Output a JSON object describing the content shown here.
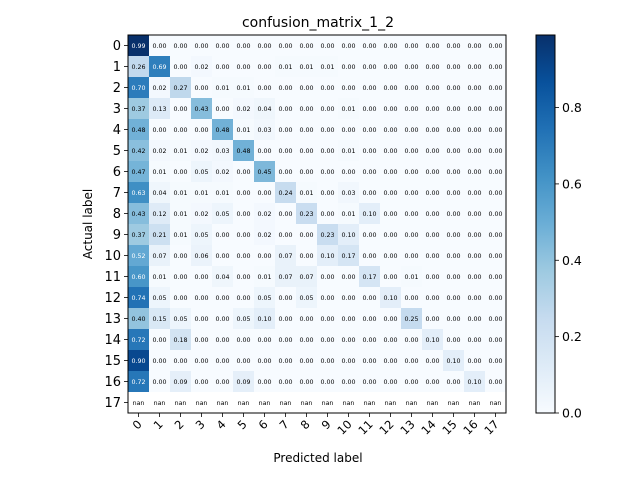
{
  "chart_data": {
    "type": "heatmap",
    "title": "confusion_matrix_1_2",
    "xlabel": "Predicted label",
    "ylabel": "Actual label",
    "labels": [
      "0",
      "1",
      "2",
      "3",
      "4",
      "5",
      "6",
      "7",
      "8",
      "9",
      "10",
      "11",
      "12",
      "13",
      "14",
      "15",
      "16",
      "17"
    ],
    "colorbar": {
      "min": 0.0,
      "max": 0.99,
      "ticks": [
        "0.0",
        "0.2",
        "0.4",
        "0.6",
        "0.8"
      ],
      "tick_values": [
        0.0,
        0.2,
        0.4,
        0.6,
        0.8
      ]
    },
    "colors": {
      "low": "#f7fbff",
      "high": "#08306b"
    },
    "matrix": [
      [
        0.99,
        0.0,
        0.0,
        0.0,
        0.0,
        0.0,
        0.0,
        0.0,
        0.0,
        0.0,
        0.0,
        0.0,
        0.0,
        0.0,
        0.0,
        0.0,
        0.0,
        0.0
      ],
      [
        0.26,
        0.69,
        0.0,
        0.02,
        0.0,
        0.0,
        0.0,
        0.01,
        0.01,
        0.01,
        0.0,
        0.0,
        0.0,
        0.0,
        0.0,
        0.0,
        0.0,
        0.0
      ],
      [
        0.7,
        0.02,
        0.27,
        0.0,
        0.01,
        0.01,
        0.0,
        0.0,
        0.0,
        0.0,
        0.0,
        0.0,
        0.0,
        0.0,
        0.0,
        0.0,
        0.0,
        0.0
      ],
      [
        0.37,
        0.13,
        0.0,
        0.43,
        0.0,
        0.02,
        0.04,
        0.0,
        0.0,
        0.0,
        0.01,
        0.0,
        0.0,
        0.0,
        0.0,
        0.0,
        0.0,
        0.0
      ],
      [
        0.48,
        0.0,
        0.0,
        0.0,
        0.48,
        0.01,
        0.03,
        0.0,
        0.0,
        0.0,
        0.0,
        0.0,
        0.0,
        0.0,
        0.0,
        0.0,
        0.0,
        0.0
      ],
      [
        0.42,
        0.02,
        0.01,
        0.02,
        0.03,
        0.48,
        0.0,
        0.0,
        0.0,
        0.0,
        0.01,
        0.0,
        0.0,
        0.0,
        0.0,
        0.0,
        0.0,
        0.0
      ],
      [
        0.47,
        0.01,
        0.0,
        0.05,
        0.02,
        0.0,
        0.45,
        0.0,
        0.0,
        0.0,
        0.0,
        0.0,
        0.0,
        0.0,
        0.0,
        0.0,
        0.0,
        0.0
      ],
      [
        0.63,
        0.04,
        0.01,
        0.01,
        0.01,
        0.0,
        0.0,
        0.24,
        0.01,
        0.0,
        0.03,
        0.0,
        0.0,
        0.0,
        0.0,
        0.0,
        0.0,
        0.0
      ],
      [
        0.43,
        0.12,
        0.01,
        0.02,
        0.05,
        0.0,
        0.02,
        0.0,
        0.23,
        0.0,
        0.01,
        0.1,
        0.0,
        0.0,
        0.0,
        0.0,
        0.0,
        0.0
      ],
      [
        0.37,
        0.21,
        0.01,
        0.05,
        0.0,
        0.0,
        0.02,
        0.0,
        0.0,
        0.23,
        0.1,
        0.0,
        0.0,
        0.0,
        0.0,
        0.0,
        0.0,
        0.0
      ],
      [
        0.52,
        0.07,
        0.0,
        0.06,
        0.0,
        0.0,
        0.0,
        0.07,
        0.0,
        0.1,
        0.17,
        0.0,
        0.0,
        0.0,
        0.0,
        0.0,
        0.0,
        0.0
      ],
      [
        0.6,
        0.01,
        0.0,
        0.0,
        0.04,
        0.0,
        0.01,
        0.07,
        0.07,
        0.0,
        0.0,
        0.17,
        0.0,
        0.01,
        0.0,
        0.0,
        0.0,
        0.0
      ],
      [
        0.74,
        0.05,
        0.0,
        0.0,
        0.0,
        0.0,
        0.05,
        0.0,
        0.05,
        0.0,
        0.0,
        0.0,
        0.1,
        0.0,
        0.0,
        0.0,
        0.0,
        0.0
      ],
      [
        0.4,
        0.15,
        0.05,
        0.0,
        0.0,
        0.05,
        0.1,
        0.0,
        0.0,
        0.0,
        0.0,
        0.0,
        0.0,
        0.25,
        0.0,
        0.0,
        0.0,
        0.0
      ],
      [
        0.72,
        0.0,
        0.18,
        0.0,
        0.0,
        0.0,
        0.0,
        0.0,
        0.0,
        0.0,
        0.0,
        0.0,
        0.0,
        0.0,
        0.1,
        0.0,
        0.0,
        0.0
      ],
      [
        0.9,
        0.0,
        0.0,
        0.0,
        0.0,
        0.0,
        0.0,
        0.0,
        0.0,
        0.0,
        0.0,
        0.0,
        0.0,
        0.0,
        0.0,
        0.1,
        0.0,
        0.0
      ],
      [
        0.72,
        0.0,
        0.09,
        0.0,
        0.0,
        0.09,
        0.0,
        0.0,
        0.0,
        0.0,
        0.0,
        0.0,
        0.0,
        0.0,
        0.0,
        0.0,
        0.1,
        0.0
      ],
      [
        null,
        null,
        null,
        null,
        null,
        null,
        null,
        null,
        null,
        null,
        null,
        null,
        null,
        null,
        null,
        null,
        null,
        null
      ]
    ],
    "nan_label": "nan"
  }
}
